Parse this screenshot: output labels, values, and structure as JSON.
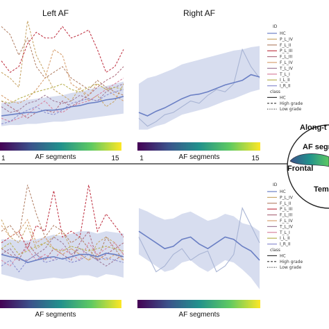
{
  "chart_data": [
    {
      "type": "line",
      "title": "Left AF",
      "colorbar": {
        "label": "AF segments",
        "min_label": "1",
        "max_label": "15"
      },
      "x": [
        1,
        2,
        3,
        4,
        5,
        6,
        7,
        8,
        9,
        10,
        11,
        12,
        13,
        14,
        15
      ],
      "series": [
        {
          "name": "HC",
          "style": "solid",
          "color": "#6a7fc4",
          "values": [
            0.17,
            0.18,
            0.19,
            0.2,
            0.2,
            0.22,
            0.22,
            0.23,
            0.25,
            0.26,
            0.28,
            0.29,
            0.31,
            0.32,
            0.34
          ],
          "band": [
            [
              0.08,
              0.28
            ],
            [
              0.09,
              0.29
            ],
            [
              0.09,
              0.3
            ],
            [
              0.1,
              0.31
            ],
            [
              0.1,
              0.32
            ],
            [
              0.11,
              0.33
            ],
            [
              0.12,
              0.34
            ],
            [
              0.12,
              0.35
            ],
            [
              0.13,
              0.37
            ],
            [
              0.14,
              0.38
            ],
            [
              0.15,
              0.4
            ],
            [
              0.16,
              0.42
            ],
            [
              0.17,
              0.43
            ],
            [
              0.18,
              0.45
            ],
            [
              0.19,
              0.47
            ]
          ]
        },
        {
          "name": "P_L_IV",
          "style": "dashed",
          "color": "#c9a86b",
          "values": [
            0.55,
            0.5,
            0.42,
            1.0,
            0.7,
            0.55,
            0.4,
            0.35,
            0.3,
            0.42,
            0.3,
            0.35,
            0.25,
            0.3,
            0.45
          ]
        },
        {
          "name": "F_L_II",
          "style": "dashed",
          "color": "#b5866d",
          "values": [
            0.95,
            0.88,
            0.7,
            0.85,
            0.6,
            0.5,
            0.55,
            0.6,
            0.5,
            0.45,
            0.4,
            0.48,
            0.42,
            0.38,
            0.35
          ]
        },
        {
          "name": "P_L_III",
          "style": "dashed",
          "color": "#c23a4a",
          "values": [
            0.65,
            0.55,
            0.6,
            0.8,
            0.9,
            0.85,
            0.85,
            0.95,
            0.85,
            0.88,
            0.92,
            0.75,
            0.55,
            0.6,
            0.75
          ]
        },
        {
          "name": "F_L_III",
          "style": "dashed",
          "color": "#b07080",
          "values": [
            0.3,
            0.25,
            0.2,
            0.15,
            0.2,
            0.22,
            0.2,
            0.3,
            0.25,
            0.3,
            0.35,
            0.42,
            0.48,
            0.52,
            0.6
          ]
        },
        {
          "name": "F_L_IV",
          "style": "dashed",
          "color": "#d7a070",
          "values": [
            0.35,
            0.3,
            0.28,
            0.32,
            0.4,
            0.5,
            0.75,
            0.7,
            0.45,
            0.4,
            0.35,
            0.45,
            0.4,
            0.35,
            0.3
          ]
        },
        {
          "name": "T_L_IV",
          "style": "dashed",
          "color": "#a07c9a",
          "values": [
            0.25,
            0.2,
            0.22,
            0.28,
            0.3,
            0.35,
            0.3,
            0.28,
            0.3,
            0.35,
            0.32,
            0.3,
            0.38,
            0.42,
            0.45
          ]
        },
        {
          "name": "T_L_I",
          "style": "dashed",
          "color": "#d9839e",
          "values": [
            0.15,
            0.12,
            0.15,
            0.18,
            0.25,
            0.3,
            0.22,
            0.2,
            0.25,
            0.28,
            0.3,
            0.35,
            0.4,
            0.45,
            0.5
          ]
        },
        {
          "name": "I_L_II",
          "style": "dashed",
          "color": "#b8b050",
          "values": [
            0.3,
            0.28,
            0.32,
            0.35,
            0.38,
            0.4,
            0.42,
            0.45,
            0.4,
            0.38,
            0.42,
            0.45,
            0.4,
            0.42,
            0.4
          ]
        },
        {
          "name": "I_R_II",
          "style": "dashed",
          "color": "#8b8fd0",
          "values": [
            0.1,
            0.12,
            0.18,
            0.22,
            0.25,
            0.2,
            0.18,
            0.22,
            0.28,
            0.3,
            0.32,
            0.3,
            0.35,
            0.38,
            0.4
          ]
        }
      ]
    },
    {
      "type": "line",
      "title": "Right AF",
      "colorbar": {
        "label": "AF segments",
        "min_label": "1",
        "max_label": "15"
      },
      "x": [
        1,
        2,
        3,
        4,
        5,
        6,
        7,
        8,
        9,
        10,
        11,
        12,
        13,
        14,
        15
      ],
      "series": [
        {
          "name": "HC",
          "style": "solid",
          "color": "#6a7fc4",
          "values": [
            0.2,
            0.17,
            0.21,
            0.24,
            0.28,
            0.32,
            0.35,
            0.36,
            0.38,
            0.41,
            0.44,
            0.46,
            0.48,
            0.53,
            0.51
          ],
          "band": [
            [
              0.05,
              0.45
            ],
            [
              0.05,
              0.5
            ],
            [
              0.08,
              0.52
            ],
            [
              0.1,
              0.55
            ],
            [
              0.14,
              0.58
            ],
            [
              0.18,
              0.62
            ],
            [
              0.2,
              0.64
            ],
            [
              0.22,
              0.66
            ],
            [
              0.24,
              0.68
            ],
            [
              0.27,
              0.7
            ],
            [
              0.3,
              0.72
            ],
            [
              0.32,
              0.74
            ],
            [
              0.35,
              0.75
            ],
            [
              0.38,
              0.77
            ],
            [
              0.4,
              0.78
            ]
          ]
        },
        {
          "name": "I_R_II",
          "style": "solid",
          "color": "#a8b4d4",
          "values": [
            0.15,
            0.08,
            0.12,
            0.18,
            0.2,
            0.25,
            0.3,
            0.28,
            0.35,
            0.4,
            0.38,
            0.45,
            0.75,
            0.6,
            0.5
          ]
        }
      ]
    },
    {
      "type": "line",
      "title": "",
      "colorbar": {
        "label": "AF segments",
        "min_label": "",
        "max_label": ""
      },
      "x": [
        1,
        2,
        3,
        4,
        5,
        6,
        7,
        8,
        9,
        10,
        11,
        12,
        13,
        14,
        15
      ],
      "series": [
        {
          "name": "HC",
          "style": "solid",
          "color": "#6a7fc4",
          "values": [
            0.35,
            0.33,
            0.32,
            0.28,
            0.3,
            0.32,
            0.33,
            0.31,
            0.33,
            0.35,
            0.35,
            0.33,
            0.36,
            0.35,
            0.33
          ],
          "band": [
            [
              0.18,
              0.48
            ],
            [
              0.16,
              0.48
            ],
            [
              0.14,
              0.47
            ],
            [
              0.12,
              0.47
            ],
            [
              0.13,
              0.48
            ],
            [
              0.14,
              0.5
            ],
            [
              0.15,
              0.52
            ],
            [
              0.14,
              0.51
            ],
            [
              0.15,
              0.53
            ],
            [
              0.17,
              0.55
            ],
            [
              0.17,
              0.55
            ],
            [
              0.15,
              0.53
            ],
            [
              0.18,
              0.55
            ],
            [
              0.17,
              0.54
            ],
            [
              0.15,
              0.53
            ]
          ]
        },
        {
          "name": "P_L_IV",
          "style": "dashed",
          "color": "#c9a86b",
          "values": [
            0.65,
            0.5,
            0.45,
            0.6,
            0.4,
            0.45,
            0.5,
            0.55,
            0.4,
            0.35,
            0.3,
            0.45,
            0.5,
            0.45,
            0.35
          ]
        },
        {
          "name": "F_L_II",
          "style": "dashed",
          "color": "#b5866d",
          "values": [
            0.55,
            0.6,
            0.5,
            0.95,
            0.7,
            0.5,
            0.6,
            0.55,
            0.45,
            0.5,
            0.4,
            0.3,
            0.5,
            0.4,
            0.3
          ]
        },
        {
          "name": "P_L_III",
          "style": "dashed",
          "color": "#c23a4a",
          "values": [
            0.45,
            0.5,
            0.55,
            0.4,
            0.6,
            0.55,
            0.9,
            0.5,
            0.55,
            0.5,
            0.95,
            0.55,
            0.7,
            0.6,
            0.5
          ]
        },
        {
          "name": "F_L_III",
          "style": "dashed",
          "color": "#b07080",
          "values": [
            0.4,
            0.35,
            0.3,
            0.45,
            0.35,
            0.3,
            0.4,
            0.35,
            0.3,
            0.45,
            0.55,
            0.3,
            0.35,
            0.4,
            0.45
          ]
        },
        {
          "name": "F_L_IV",
          "style": "dashed",
          "color": "#d7a070",
          "values": [
            0.6,
            0.5,
            0.55,
            0.65,
            0.45,
            0.5,
            0.4,
            0.35,
            0.4,
            0.35,
            0.3,
            0.35,
            0.3,
            0.35,
            0.3
          ]
        },
        {
          "name": "T_L_IV",
          "style": "dashed",
          "color": "#a07c9a",
          "values": [
            0.35,
            0.4,
            0.3,
            0.3,
            0.35,
            0.4,
            0.5,
            0.45,
            0.35,
            0.4,
            0.35,
            0.3,
            0.25,
            0.3,
            0.35
          ]
        },
        {
          "name": "T_L_I",
          "style": "dashed",
          "color": "#d9839e",
          "values": [
            0.3,
            0.25,
            0.35,
            0.4,
            0.3,
            0.35,
            0.3,
            0.4,
            0.35,
            0.3,
            0.45,
            0.35,
            0.4,
            0.45,
            0.35
          ]
        },
        {
          "name": "I_L_II",
          "style": "dashed",
          "color": "#b8b050",
          "values": [
            0.4,
            0.45,
            0.35,
            0.38,
            0.42,
            0.45,
            0.4,
            0.38,
            0.42,
            0.4,
            0.38,
            0.4,
            0.42,
            0.4,
            0.38
          ]
        },
        {
          "name": "I_R_II",
          "style": "dashed",
          "color": "#8b8fd0",
          "values": [
            0.25,
            0.3,
            0.2,
            0.3,
            0.35,
            0.28,
            0.3,
            0.32,
            0.28,
            0.3,
            0.35,
            0.3,
            0.32,
            0.3,
            0.28
          ]
        }
      ]
    },
    {
      "type": "line",
      "title": "",
      "colorbar": {
        "label": "AF segments",
        "min_label": "",
        "max_label": ""
      },
      "x": [
        1,
        2,
        3,
        4,
        5,
        6,
        7,
        8,
        9,
        10,
        11,
        12,
        13,
        14,
        15
      ],
      "series": [
        {
          "name": "HC",
          "style": "solid",
          "color": "#6a7fc4",
          "values": [
            0.55,
            0.5,
            0.45,
            0.4,
            0.42,
            0.48,
            0.5,
            0.44,
            0.4,
            0.45,
            0.5,
            0.48,
            0.42,
            0.38,
            0.3
          ],
          "band": [
            [
              0.35,
              0.75
            ],
            [
              0.3,
              0.72
            ],
            [
              0.25,
              0.68
            ],
            [
              0.2,
              0.65
            ],
            [
              0.22,
              0.66
            ],
            [
              0.28,
              0.7
            ],
            [
              0.3,
              0.72
            ],
            [
              0.24,
              0.68
            ],
            [
              0.2,
              0.64
            ],
            [
              0.25,
              0.66
            ],
            [
              0.3,
              0.7
            ],
            [
              0.28,
              0.68
            ],
            [
              0.22,
              0.62
            ],
            [
              0.15,
              0.6
            ],
            [
              0.05,
              0.55
            ]
          ]
        },
        {
          "name": "I_R_II",
          "style": "solid",
          "color": "#a8b4d4",
          "values": [
            0.5,
            0.35,
            0.2,
            0.25,
            0.35,
            0.4,
            0.3,
            0.35,
            0.38,
            0.2,
            0.25,
            0.35,
            0.75,
            0.6,
            0.45
          ]
        }
      ]
    }
  ],
  "legends": [
    {
      "id_header": "ID",
      "ids": [
        "HC",
        "P_L_IV",
        "F_L_II",
        "P_L_III",
        "F_L_III",
        "F_L_IV",
        "T_L_IV",
        "T_L_I",
        "I_L_II",
        "I_R_II"
      ],
      "class_header": "class",
      "classes": [
        "HC",
        "High grade",
        "Low grade"
      ]
    },
    {
      "id_header": "ID",
      "ids": [
        "HC",
        "P_L_IV",
        "F_L_II",
        "P_L_III",
        "F_L_III",
        "F_L_IV",
        "T_L_IV",
        "T_L_I",
        "I_L_II",
        "I_R_II"
      ],
      "class_header": "class",
      "classes": [
        "HC",
        "High grade",
        "Low grade"
      ]
    }
  ],
  "inset": {
    "labels": [
      "Along-t",
      "AF segm",
      "Frontal",
      "Tem"
    ]
  },
  "colors": {
    "hc_line": "#6a7fc4",
    "hc_band": "#c9d1ea",
    "low_grade_line": "#a8b4d4",
    "viridis": [
      "#440154",
      "#3b528b",
      "#21918c",
      "#5ec962",
      "#fde725"
    ]
  }
}
